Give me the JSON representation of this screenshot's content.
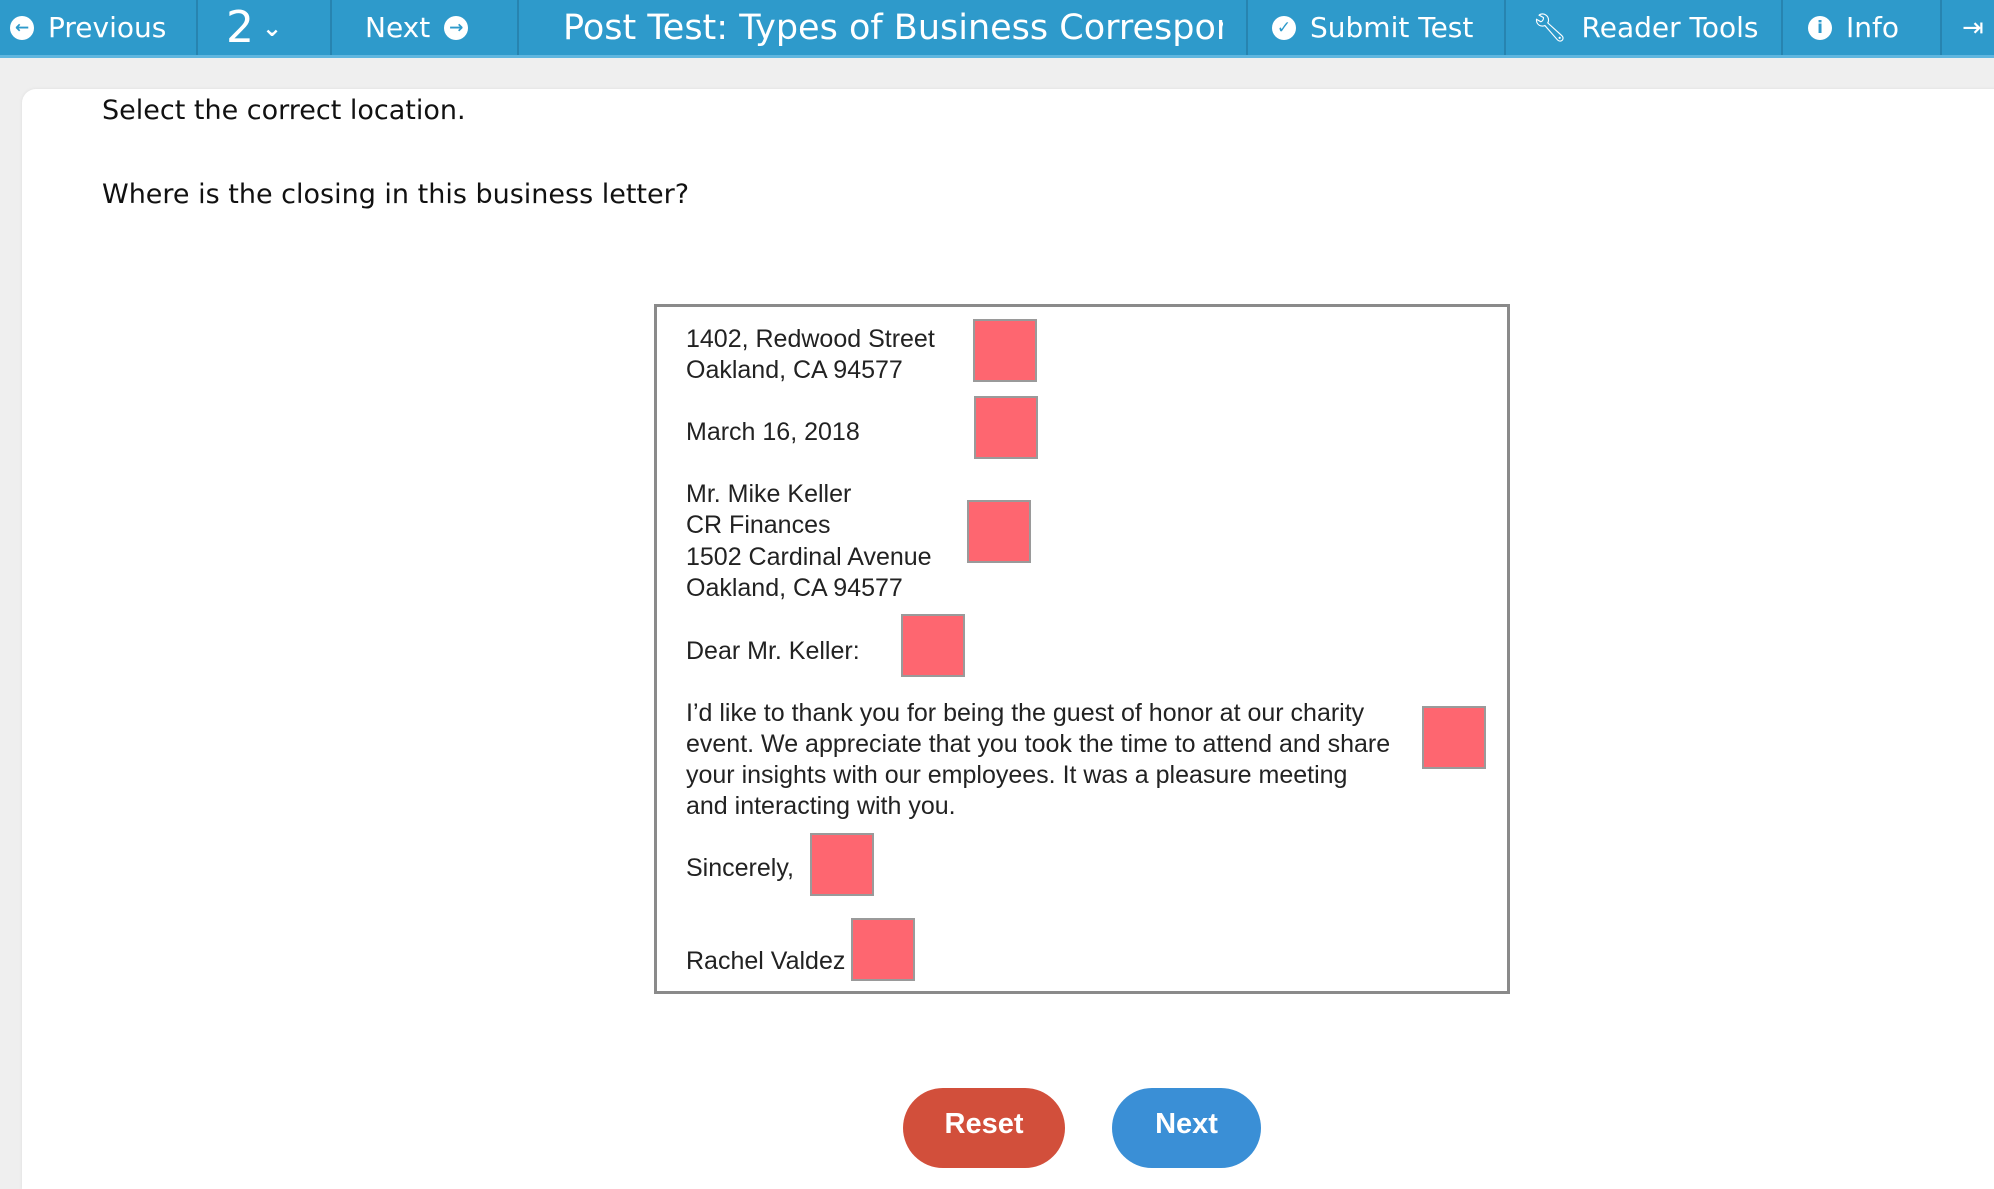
{
  "header": {
    "previous": "Previous",
    "question_number": "2",
    "next": "Next",
    "title": "Post Test: Types of Business Correspon",
    "submit": "Submit Test",
    "reader_tools": "Reader Tools",
    "info": "Info"
  },
  "instruction": "Select the correct location.",
  "question": "Where is the closing in this business letter?",
  "letter": {
    "sender": [
      "1402, Redwood Street",
      "Oakland, CA 94577"
    ],
    "date": "March 16, 2018",
    "recipient": [
      "Mr. Mike Keller",
      "CR Finances",
      "1502 Cardinal Avenue",
      "Oakland, CA 94577"
    ],
    "salutation": "Dear Mr. Keller:",
    "body": [
      "I’d like to thank you for being the guest of honor at our charity",
      "event. We appreciate that you took the time to attend and share",
      "your insights with our employees. It was a pleasure meeting",
      "and interacting with you."
    ],
    "closing": "Sincerely,",
    "signature": "Rachel Valdez"
  },
  "colors": {
    "header": "#2e9acb",
    "target": "#fe6670",
    "reset": "#d24f3b",
    "next": "#3a8fd6"
  },
  "buttons": {
    "reset": "Reset",
    "next": "Next"
  }
}
